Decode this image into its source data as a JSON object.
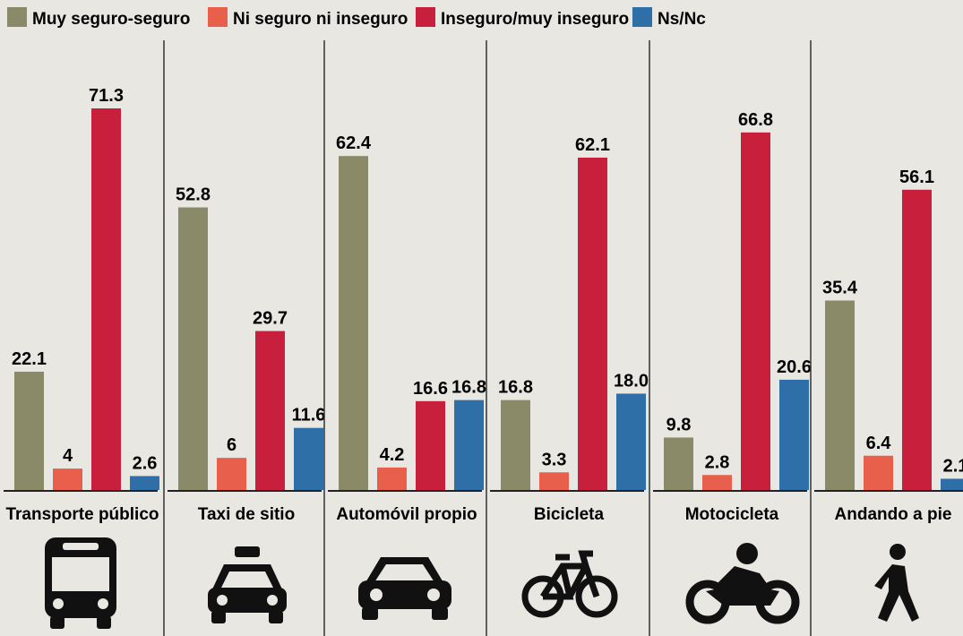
{
  "chart_data": {
    "type": "bar",
    "categories": [
      "Transporte público",
      "Taxi de sitio",
      "Automóvil propio",
      "Bicicleta",
      "Motocicleta",
      "Andando a pie"
    ],
    "series": [
      {
        "name": "Muy seguro-seguro",
        "color": "#8a8a68",
        "values": [
          22.1,
          52.8,
          62.4,
          16.8,
          9.8,
          35.4
        ]
      },
      {
        "name": "Ni seguro ni inseguro",
        "color": "#e8604c",
        "values": [
          4,
          6,
          4.2,
          3.3,
          2.8,
          6.4
        ]
      },
      {
        "name": "Inseguro/muy inseguro",
        "color": "#c8203c",
        "values": [
          71.3,
          29.7,
          16.6,
          62.1,
          66.8,
          56.1
        ]
      },
      {
        "name": "Ns/Nc",
        "color": "#2e6fa8",
        "values": [
          2.6,
          11.6,
          16.8,
          18.0,
          20.6,
          2.1
        ],
        "value_labels": [
          "2.6",
          "11.6",
          "16.8",
          "18.0",
          "20.6",
          "2.1"
        ]
      }
    ],
    "legend": "top"
  }
}
